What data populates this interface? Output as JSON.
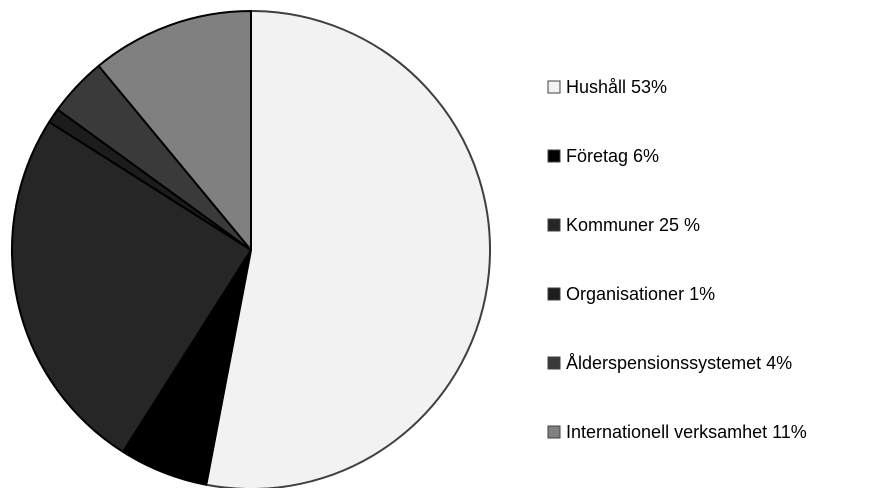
{
  "chart_data": {
    "type": "pie",
    "categories": [
      "Hushåll 53%",
      "Företag 6%",
      "Kommuner 25 %",
      "Organisationer 1%",
      "Ålderspensionssystemet 4%",
      "Internationell verksamhet 11%"
    ],
    "values": [
      53,
      6,
      25,
      1,
      4,
      11
    ],
    "colors": [
      "#f2f2f2",
      "#000000",
      "#262626",
      "#1c1c1c",
      "#3a3a3a",
      "#808080"
    ],
    "legend": "right"
  }
}
